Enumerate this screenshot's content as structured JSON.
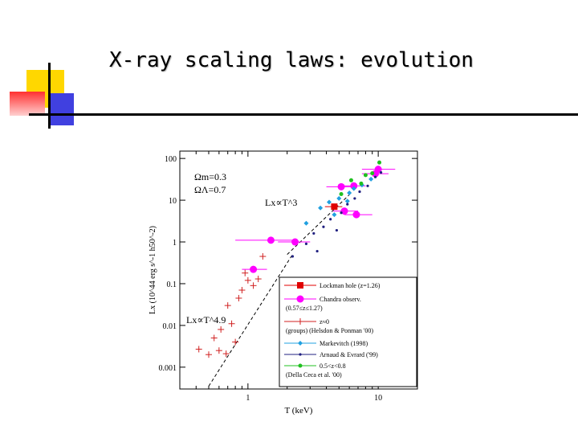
{
  "slide": {
    "title": "X-ray scaling laws: evolution"
  },
  "colors": {
    "accent_yellow": "#ffd700",
    "accent_red": "#ff3030",
    "accent_blue": "#4040e0"
  },
  "chart_data": {
    "type": "scatter",
    "xlabel": "T (keV)",
    "ylabel": "Lx (10^44 erg s^-1 h50^-2)",
    "x_scale": "log",
    "y_scale": "log",
    "xlim": [
      0.3,
      20
    ],
    "ylim": [
      0.0003,
      150
    ],
    "x_ticks": [
      {
        "v": 1,
        "label": "1"
      },
      {
        "v": 10,
        "label": "10"
      }
    ],
    "y_ticks": [
      {
        "v": 100,
        "label": "100"
      },
      {
        "v": 10,
        "label": "10"
      },
      {
        "v": 1,
        "label": "1"
      },
      {
        "v": 0.1,
        "label": "0.1"
      },
      {
        "v": 0.01,
        "label": "0.01"
      },
      {
        "v": 0.001,
        "label": "0.001"
      }
    ],
    "annotations": {
      "omega_m": "Ωm=0.3",
      "omega_l": "ΩΛ=0.7",
      "law_high": "Lx∝T^3",
      "law_low": "Lx∝T^4.9"
    },
    "fit_lines": [
      {
        "name": "Lx∝T^3",
        "points": [
          [
            2.0,
            0.5
          ],
          [
            6.0,
            13.5
          ]
        ]
      },
      {
        "name": "Lx∝T^4.9",
        "points": [
          [
            0.5,
            0.00035
          ],
          [
            2.2,
            0.5
          ]
        ]
      }
    ],
    "legend_position": "bottom-right",
    "series": [
      {
        "name": "Lockman hole (z=1.26)",
        "color": "#e00000",
        "marker": "square",
        "points": [
          {
            "x": 4.6,
            "y": 7.0,
            "xerr": [
              3.9,
              5.3
            ]
          }
        ]
      },
      {
        "name": "Chandra observ. (0.57≤z≤1.27)",
        "color": "#ff00ff",
        "marker": "circle",
        "points": [
          {
            "x": 10.0,
            "y": 55,
            "xerr": [
              7.5,
              13.5
            ]
          },
          {
            "x": 9.5,
            "y": 43,
            "xerr": [
              7.5,
              12.0
            ]
          },
          {
            "x": 5.2,
            "y": 21,
            "xerr": [
              4.0,
              6.5
            ]
          },
          {
            "x": 6.5,
            "y": 22,
            "xerr": [
              5.2,
              8.0
            ]
          },
          {
            "x": 5.5,
            "y": 5.5,
            "xerr": [
              4.5,
              7.0
            ]
          },
          {
            "x": 6.8,
            "y": 4.5,
            "xerr": [
              5.5,
              9.0
            ]
          },
          {
            "x": 2.3,
            "y": 1.0,
            "xerr": [
              1.7,
              3.0
            ]
          },
          {
            "x": 1.5,
            "y": 1.1,
            "xerr": [
              0.8,
              2.4
            ]
          },
          {
            "x": 1.1,
            "y": 0.22,
            "xerr": [
              0.9,
              1.4
            ]
          }
        ]
      },
      {
        "name": "z≈0 (groups) (Helsdon & Ponman '00)",
        "color": "#d02020",
        "marker": "cross",
        "points": [
          {
            "x": 0.42,
            "y": 0.0027
          },
          {
            "x": 0.5,
            "y": 0.002
          },
          {
            "x": 0.6,
            "y": 0.0025
          },
          {
            "x": 0.68,
            "y": 0.0021
          },
          {
            "x": 0.55,
            "y": 0.005
          },
          {
            "x": 0.8,
            "y": 0.004
          },
          {
            "x": 0.62,
            "y": 0.008
          },
          {
            "x": 0.75,
            "y": 0.011
          },
          {
            "x": 0.7,
            "y": 0.03
          },
          {
            "x": 0.85,
            "y": 0.045
          },
          {
            "x": 0.9,
            "y": 0.07
          },
          {
            "x": 1.0,
            "y": 0.12
          },
          {
            "x": 1.2,
            "y": 0.13
          },
          {
            "x": 0.95,
            "y": 0.18
          },
          {
            "x": 1.1,
            "y": 0.09
          },
          {
            "x": 1.3,
            "y": 0.45
          }
        ]
      },
      {
        "name": "Markevitch (1998)",
        "color": "#20a0e0",
        "marker": "diamond",
        "points": [
          {
            "x": 2.8,
            "y": 2.8
          },
          {
            "x": 3.6,
            "y": 6.5
          },
          {
            "x": 4.2,
            "y": 9
          },
          {
            "x": 5.0,
            "y": 11
          },
          {
            "x": 6.0,
            "y": 15
          },
          {
            "x": 6.5,
            "y": 19
          },
          {
            "x": 7.5,
            "y": 23
          },
          {
            "x": 8.8,
            "y": 32
          },
          {
            "x": 5.8,
            "y": 9.5
          },
          {
            "x": 4.6,
            "y": 4.5
          }
        ]
      },
      {
        "name": "Arnaud & Evrard ('99)",
        "color": "#202080",
        "marker": "dot",
        "points": [
          {
            "x": 2.2,
            "y": 0.45
          },
          {
            "x": 2.8,
            "y": 0.9
          },
          {
            "x": 3.2,
            "y": 1.6
          },
          {
            "x": 3.8,
            "y": 2.3
          },
          {
            "x": 4.3,
            "y": 3.5
          },
          {
            "x": 5.2,
            "y": 5
          },
          {
            "x": 5.8,
            "y": 8
          },
          {
            "x": 6.6,
            "y": 11
          },
          {
            "x": 7.2,
            "y": 16
          },
          {
            "x": 8.3,
            "y": 22
          },
          {
            "x": 9.5,
            "y": 36
          },
          {
            "x": 10.5,
            "y": 46
          },
          {
            "x": 3.4,
            "y": 0.6
          },
          {
            "x": 4.8,
            "y": 1.9
          }
        ]
      },
      {
        "name": "0.5<z<0.8 (Della Ceca et al. '00)",
        "color": "#20c020",
        "marker": "circle-small",
        "points": [
          {
            "x": 5.2,
            "y": 14
          },
          {
            "x": 6.2,
            "y": 30
          },
          {
            "x": 8.0,
            "y": 40
          },
          {
            "x": 9.0,
            "y": 44
          },
          {
            "x": 10.2,
            "y": 80
          },
          {
            "x": 7.4,
            "y": 25
          }
        ]
      }
    ]
  }
}
